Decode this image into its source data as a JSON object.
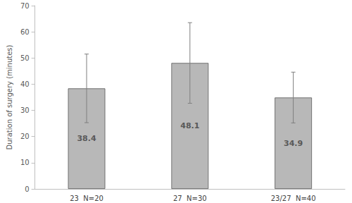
{
  "chart_data": {
    "type": "bar",
    "y_label": "Duration of surgery (minutes)",
    "categories": [
      "23  N=20",
      "27  N=30",
      "23/27  N=40"
    ],
    "values": [
      38.4,
      48.1,
      34.9
    ],
    "errors": [
      13.1,
      15.4,
      9.7
    ],
    "color": "#b8b8b8",
    "ylim": [
      0,
      70
    ],
    "yticks": [
      0,
      10,
      20,
      30,
      40,
      50,
      60,
      70
    ],
    "grid": false,
    "data_labels": true
  }
}
